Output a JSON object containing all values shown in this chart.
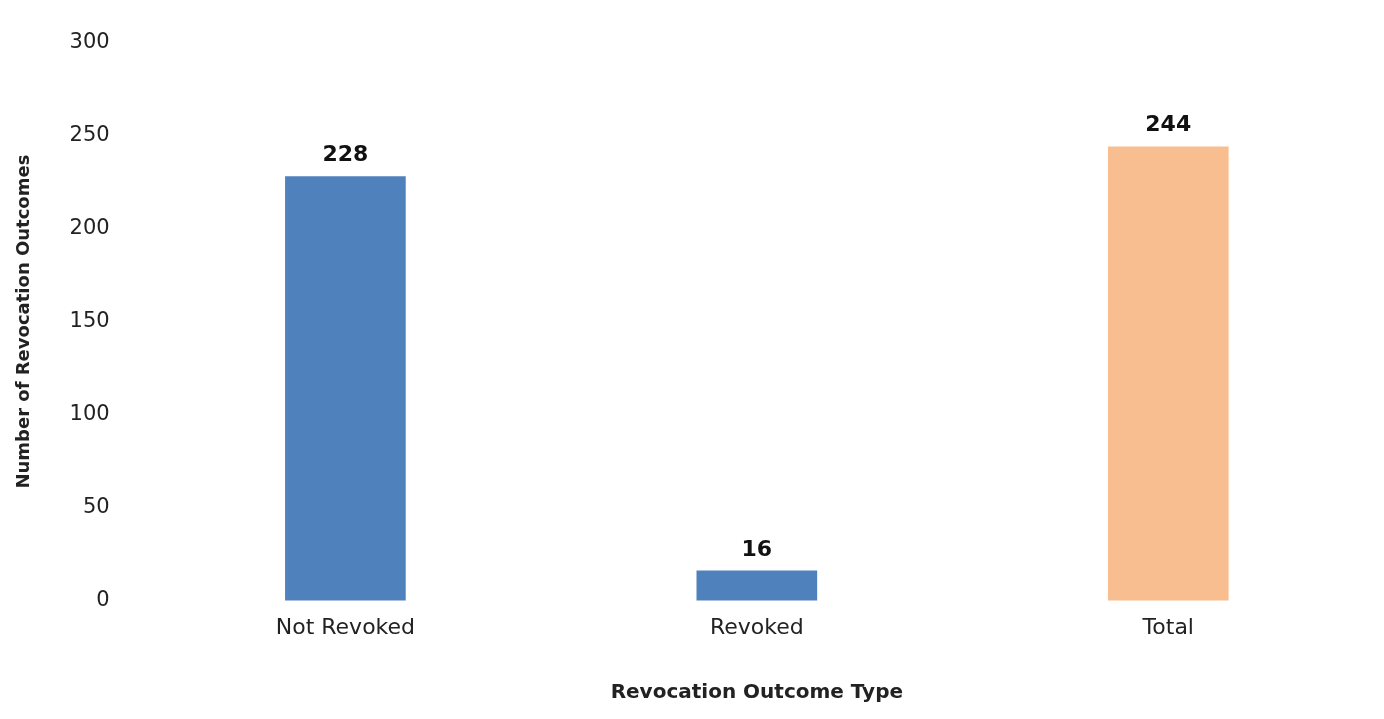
{
  "chart_data": {
    "type": "bar",
    "xlabel": "Revocation Outcome Type",
    "ylabel": "Number of Revocation Outcomes",
    "categories": [
      "Not Revoked",
      "Revoked",
      "Total"
    ],
    "values": [
      228,
      16,
      244
    ],
    "colors": [
      "#4f81bd",
      "#4f81bd",
      "#f9be8f"
    ],
    "ylim": [
      0,
      300
    ],
    "yticks": [
      0,
      50,
      100,
      150,
      200,
      250,
      300
    ],
    "grid": false,
    "data_labels": true
  }
}
